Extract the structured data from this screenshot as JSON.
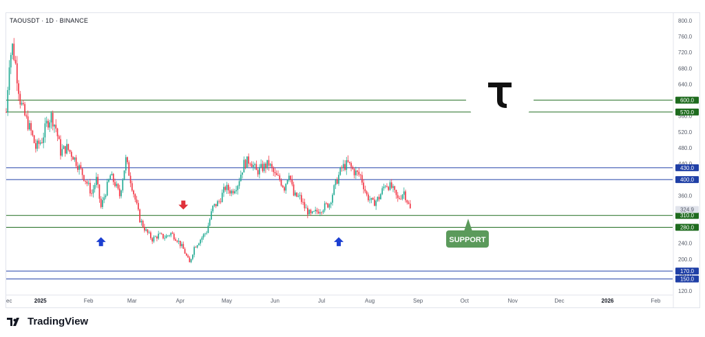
{
  "symbol": "TAOUSDT · 1D · BINANCE",
  "brand": "TradingView",
  "chart_data": {
    "type": "candlestick",
    "y_ticks": [
      800,
      760,
      720,
      680,
      640,
      600,
      560,
      520,
      480,
      440,
      400,
      360,
      320,
      280,
      240,
      200,
      160,
      120
    ],
    "x_ticks": [
      {
        "label": "ec",
        "date": "2024-12-10",
        "bold": false
      },
      {
        "label": "2025",
        "date": "2025-01-01",
        "bold": true
      },
      {
        "label": "Feb",
        "date": "2025-02-01",
        "bold": false
      },
      {
        "label": "Mar",
        "date": "2025-03-01",
        "bold": false
      },
      {
        "label": "Apr",
        "date": "2025-04-01",
        "bold": false
      },
      {
        "label": "May",
        "date": "2025-05-01",
        "bold": false
      },
      {
        "label": "Jun",
        "date": "2025-06-01",
        "bold": false
      },
      {
        "label": "Jul",
        "date": "2025-07-01",
        "bold": false
      },
      {
        "label": "Aug",
        "date": "2025-08-01",
        "bold": false
      },
      {
        "label": "Sep",
        "date": "2025-09-01",
        "bold": false
      },
      {
        "label": "Oct",
        "date": "2025-10-01",
        "bold": false
      },
      {
        "label": "Nov",
        "date": "2025-11-01",
        "bold": false
      },
      {
        "label": "Dec",
        "date": "2025-12-01",
        "bold": false
      },
      {
        "label": "2026",
        "date": "2026-01-01",
        "bold": true
      },
      {
        "label": "Feb",
        "date": "2026-02-01",
        "bold": false
      }
    ],
    "levels": [
      {
        "value": 600,
        "label": "600.0",
        "color": "#1e6b1e"
      },
      {
        "value": 570,
        "label": "570.0",
        "color": "#1e6b1e"
      },
      {
        "value": 430,
        "label": "430.0",
        "color": "#1f3fa6"
      },
      {
        "value": 400,
        "label": "400.0",
        "color": "#1f3fa6"
      },
      {
        "value": 310,
        "label": "310.0",
        "color": "#1e6b1e"
      },
      {
        "value": 280,
        "label": "280.0",
        "color": "#1e6b1e"
      },
      {
        "value": 170,
        "label": "170.0",
        "color": "#1f3fa6"
      },
      {
        "value": 150,
        "label": "150.0",
        "color": "#1f3fa6"
      }
    ],
    "last_price": {
      "value": 324.9,
      "label": "324.9"
    },
    "annotations": {
      "support_label": "SUPPORT",
      "support_color": "#5b9a5b",
      "up_arrow_color": "#1c3fd1",
      "down_arrow_color": "#e0323b",
      "up_arrows": [
        {
          "date": "2025-02-09",
          "value": 243
        },
        {
          "date": "2025-07-12",
          "value": 243
        }
      ],
      "down_arrows": [
        {
          "date": "2025-04-03",
          "value": 337
        }
      ]
    },
    "price_path": [
      [
        "2024-12-10",
        570
      ],
      [
        "2024-12-12",
        700
      ],
      [
        "2024-12-14",
        735
      ],
      [
        "2024-12-16",
        690
      ],
      [
        "2024-12-19",
        600
      ],
      [
        "2024-12-22",
        560
      ],
      [
        "2024-12-26",
        520
      ],
      [
        "2024-12-29",
        480
      ],
      [
        "2025-01-02",
        500
      ],
      [
        "2025-01-05",
        540
      ],
      [
        "2025-01-08",
        560
      ],
      [
        "2025-01-11",
        530
      ],
      [
        "2025-01-14",
        470
      ],
      [
        "2025-01-18",
        480
      ],
      [
        "2025-01-22",
        460
      ],
      [
        "2025-01-26",
        430
      ],
      [
        "2025-01-30",
        400
      ],
      [
        "2025-02-03",
        365
      ],
      [
        "2025-02-06",
        400
      ],
      [
        "2025-02-09",
        330
      ],
      [
        "2025-02-12",
        370
      ],
      [
        "2025-02-15",
        410
      ],
      [
        "2025-02-18",
        390
      ],
      [
        "2025-02-21",
        360
      ],
      [
        "2025-02-25",
        450
      ],
      [
        "2025-02-28",
        400
      ],
      [
        "2025-03-03",
        350
      ],
      [
        "2025-03-06",
        300
      ],
      [
        "2025-03-10",
        270
      ],
      [
        "2025-03-14",
        250
      ],
      [
        "2025-03-18",
        260
      ],
      [
        "2025-03-22",
        255
      ],
      [
        "2025-03-26",
        265
      ],
      [
        "2025-03-30",
        250
      ],
      [
        "2025-04-03",
        225
      ],
      [
        "2025-04-07",
        190
      ],
      [
        "2025-04-10",
        230
      ],
      [
        "2025-04-14",
        250
      ],
      [
        "2025-04-18",
        270
      ],
      [
        "2025-04-22",
        330
      ],
      [
        "2025-04-26",
        345
      ],
      [
        "2025-04-30",
        380
      ],
      [
        "2025-05-04",
        370
      ],
      [
        "2025-05-08",
        390
      ],
      [
        "2025-05-12",
        440
      ],
      [
        "2025-05-16",
        450
      ],
      [
        "2025-05-20",
        420
      ],
      [
        "2025-05-24",
        430
      ],
      [
        "2025-05-28",
        440
      ],
      [
        "2025-06-01",
        410
      ],
      [
        "2025-06-04",
        400
      ],
      [
        "2025-06-07",
        380
      ],
      [
        "2025-06-10",
        420
      ],
      [
        "2025-06-13",
        360
      ],
      [
        "2025-06-17",
        355
      ],
      [
        "2025-06-20",
        330
      ],
      [
        "2025-06-24",
        310
      ],
      [
        "2025-06-28",
        320
      ],
      [
        "2025-07-02",
        330
      ],
      [
        "2025-07-06",
        340
      ],
      [
        "2025-07-10",
        390
      ],
      [
        "2025-07-14",
        430
      ],
      [
        "2025-07-18",
        440
      ],
      [
        "2025-07-22",
        420
      ],
      [
        "2025-07-26",
        410
      ],
      [
        "2025-07-30",
        360
      ],
      [
        "2025-08-03",
        340
      ],
      [
        "2025-08-07",
        355
      ],
      [
        "2025-08-11",
        390
      ],
      [
        "2025-08-15",
        380
      ],
      [
        "2025-08-19",
        350
      ],
      [
        "2025-08-23",
        370
      ],
      [
        "2025-08-27",
        325
      ]
    ]
  }
}
